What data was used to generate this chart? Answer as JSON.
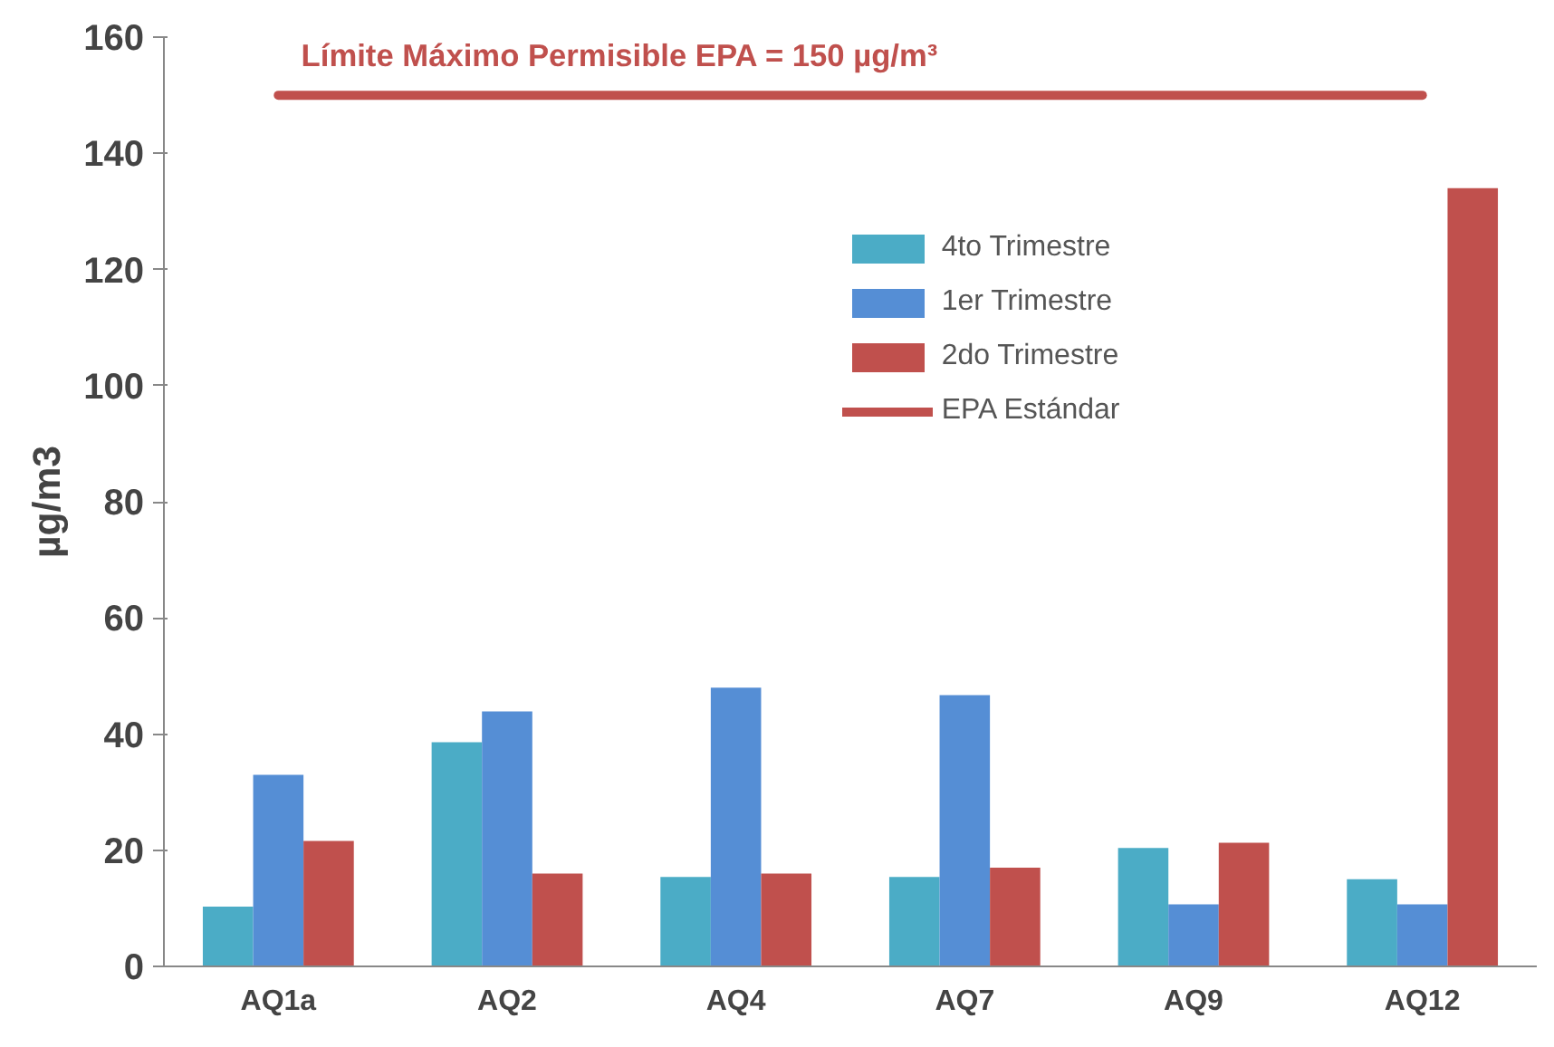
{
  "chart_data": {
    "type": "bar",
    "ylabel": "µg/m3",
    "categories": [
      "AQ1a",
      "AQ2",
      "AQ4",
      "AQ7",
      "AQ9",
      "AQ12"
    ],
    "series": [
      {
        "name": "4to Trimestre",
        "color": "#4bacc6",
        "values": [
          10.3,
          38.6,
          15.4,
          15.4,
          20.4,
          15
        ]
      },
      {
        "name": "1er Trimestre",
        "color": "#558ed5",
        "values": [
          33,
          43.9,
          48,
          46.7,
          10.7,
          10.7
        ]
      },
      {
        "name": "2do Trimestre",
        "color": "#c0504d",
        "values": [
          21.6,
          16,
          16,
          17,
          21.3,
          134
        ]
      },
      {
        "name": "EPA Estándar",
        "type": "line",
        "color": "#c0504d",
        "values": [
          150,
          150,
          150,
          150,
          150,
          150
        ]
      }
    ],
    "annotations": [
      {
        "text": "Límite Máximo Permisible EPA  = 150 µg/m³",
        "x": "AQ2",
        "y": 150
      }
    ],
    "ylim": [
      0,
      160
    ],
    "yticks": [
      0,
      20,
      40,
      60,
      80,
      100,
      120,
      140,
      160
    ],
    "grid": false,
    "legend": "top right"
  }
}
